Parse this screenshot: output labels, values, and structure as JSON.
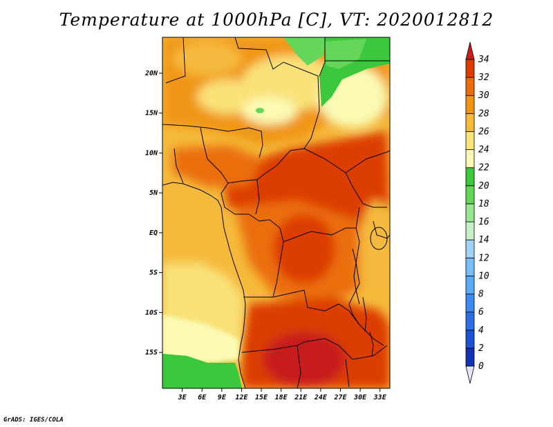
{
  "title": "Temperature at 1000hPa [C], VT: 2020012812",
  "footer": "GrADS: IGES/COLA",
  "map": {
    "lon_range": [
      0,
      34.5
    ],
    "lat_range": [
      -19.5,
      24.5
    ],
    "lon_ticks": [
      {
        "value": 3,
        "label": "3E"
      },
      {
        "value": 6,
        "label": "6E"
      },
      {
        "value": 9,
        "label": "9E"
      },
      {
        "value": 12,
        "label": "12E"
      },
      {
        "value": 15,
        "label": "15E"
      },
      {
        "value": 18,
        "label": "18E"
      },
      {
        "value": 21,
        "label": "21E"
      },
      {
        "value": 24,
        "label": "24E"
      },
      {
        "value": 27,
        "label": "27E"
      },
      {
        "value": 30,
        "label": "30E"
      },
      {
        "value": 33,
        "label": "33E"
      }
    ],
    "lat_ticks": [
      {
        "value": 20,
        "label": "20N"
      },
      {
        "value": 15,
        "label": "15N"
      },
      {
        "value": 10,
        "label": "10N"
      },
      {
        "value": 5,
        "label": "5N"
      },
      {
        "value": 0,
        "label": "EQ"
      },
      {
        "value": -5,
        "label": "5S"
      },
      {
        "value": -10,
        "label": "10S"
      },
      {
        "value": -15,
        "label": "15S"
      }
    ]
  },
  "colorbar": {
    "levels": [
      0,
      2,
      4,
      6,
      8,
      10,
      12,
      14,
      16,
      18,
      20,
      22,
      24,
      26,
      28,
      30,
      32,
      34
    ],
    "colors": [
      "#0c0c78",
      "#1432b4",
      "#1e50d2",
      "#2d6ee6",
      "#3c8cf0",
      "#5aaaf5",
      "#78bef8",
      "#a0d2fa",
      "#c8f0c8",
      "#96e68c",
      "#64d75a",
      "#3cc83c",
      "#fafab4",
      "#fae178",
      "#f5b93c",
      "#f09614",
      "#eb6e0a",
      "#dc3c00",
      "#c81e1e"
    ],
    "under_color": "#e6e6fa",
    "over_color": "#c81e1e"
  }
}
